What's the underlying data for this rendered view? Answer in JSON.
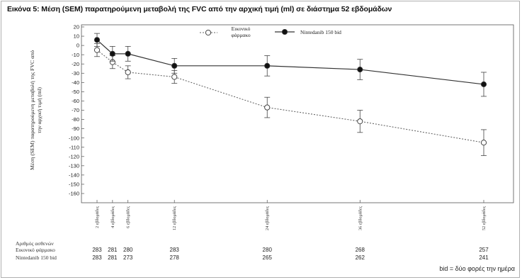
{
  "caption": "Εικόνα 5: Μέση (SEM) παρατηρούμενη μεταβολή της FVC από την αρχική τιμή (ml) σε διάστημα 52 εβδομάδων",
  "footnote": "bid = δύο φορές την ημέρα",
  "chart_data": {
    "type": "line",
    "ylabel": "Μέση (SEM) παρατηρούμενη μεταβολή της FVC από την αρχική τιμή (ml)",
    "ylim": [
      -160,
      20
    ],
    "yticks": [
      20,
      10,
      0,
      -10,
      -20,
      -30,
      -40,
      -50,
      -60,
      -70,
      -80,
      -90,
      -100,
      -110,
      -120,
      -130,
      -140,
      -150,
      -160
    ],
    "grid": false,
    "legend_position": "top",
    "x_weeks": [
      2,
      4,
      6,
      12,
      24,
      36,
      52
    ],
    "x_tick_labels": [
      "2 εβδομάδες",
      "4 εβδομάδες",
      "6 εβδομάδες",
      "12 εβδομάδες",
      "24 εβδομάδες",
      "36 εβδομάδες",
      "52 εβδομάδες"
    ],
    "series": [
      {
        "name": "Εικονικό φάρμακο",
        "marker": "open-circle",
        "line_style": "dotted",
        "values": [
          -5,
          -18,
          -29,
          -34,
          -67,
          -82,
          -105
        ],
        "sem": [
          7,
          7,
          7,
          7,
          11,
          12,
          14
        ]
      },
      {
        "name": "Nintedanib 150 bid",
        "marker": "filled-circle",
        "line_style": "solid",
        "values": [
          6,
          -9,
          -9,
          -22,
          -22,
          -26,
          -42
        ],
        "sem": [
          7,
          8,
          8,
          8,
          11,
          11,
          13
        ]
      }
    ],
    "patients_table": {
      "header": "Αριθμός ασθενών",
      "rows": [
        {
          "label": "Εικονικό φάρμακο",
          "values": [
            "283",
            "281",
            "280",
            "283",
            "280",
            "268",
            "257"
          ]
        },
        {
          "label": "Nintedanib 150 bid",
          "values": [
            "283",
            "281",
            "273",
            "278",
            "265",
            "262",
            "241"
          ]
        }
      ]
    }
  }
}
